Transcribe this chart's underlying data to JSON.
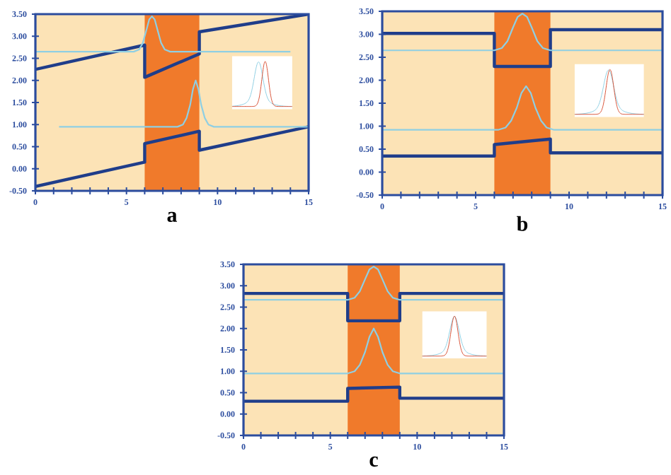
{
  "chart_data": [
    {
      "type": "line",
      "xlabel": "a",
      "xlim": [
        0,
        15
      ],
      "ylim": [
        -0.5,
        3.5
      ],
      "xticks": [
        0,
        {
          "value": 1,
          "label": null
        },
        {
          "value": 2,
          "label": null
        },
        {
          "value": 3,
          "label": null
        },
        {
          "value": 4,
          "label": null
        },
        5,
        {
          "value": 6,
          "label": null
        },
        {
          "value": 7,
          "label": null
        },
        {
          "value": 8,
          "label": null
        },
        {
          "value": 9,
          "label": null
        },
        10,
        {
          "value": 11,
          "label": null
        },
        {
          "value": 12,
          "label": null
        },
        {
          "value": 13,
          "label": null
        },
        {
          "value": 14,
          "label": null
        },
        15
      ],
      "yticks": [
        {
          "value": -0.5,
          "label": "-0.50"
        },
        {
          "value": 0,
          "label": "0.00"
        },
        {
          "value": 0.5,
          "label": "0.50"
        },
        {
          "value": 1,
          "label": "1.00"
        },
        {
          "value": 1.5,
          "label": "1.50"
        },
        {
          "value": 2,
          "label": "2.00"
        },
        {
          "value": 2.5,
          "label": "2.50"
        },
        {
          "value": 3,
          "label": "3.00"
        },
        {
          "value": 3.5,
          "label": "3.50"
        }
      ],
      "bands": [
        {
          "axis": "x",
          "from": 6,
          "to": 9,
          "color": "#f07a2b"
        }
      ],
      "series": [
        {
          "color": "#1f3d8a",
          "x": [
            0,
            6,
            6,
            9,
            9,
            15
          ],
          "values": [
            -0.4,
            0.15,
            0.57,
            0.85,
            0.42,
            0.95
          ]
        },
        {
          "color": "#1f3d8a",
          "x": [
            0,
            6,
            6,
            9,
            9,
            15
          ],
          "values": [
            2.25,
            2.8,
            2.07,
            2.6,
            3.1,
            3.5
          ]
        },
        {
          "color": "#8fcfe3",
          "x": [
            1.3,
            7.8,
            8.1,
            8.3,
            8.5,
            8.65,
            8.8,
            8.95,
            9.1,
            9.3,
            9.5,
            9.8,
            15
          ],
          "values": [
            0.95,
            0.95,
            1.0,
            1.15,
            1.45,
            1.8,
            2.0,
            1.8,
            1.45,
            1.15,
            1.0,
            0.95,
            0.95
          ]
        },
        {
          "color": "#8fcfe3",
          "x": [
            0,
            5.4,
            5.7,
            5.9,
            6.1,
            6.25,
            6.4,
            6.55,
            6.7,
            6.9,
            7.1,
            7.4,
            14
          ],
          "values": [
            2.65,
            2.65,
            2.7,
            2.85,
            3.15,
            3.38,
            3.45,
            3.38,
            3.15,
            2.85,
            2.7,
            2.65,
            2.65
          ]
        }
      ]
    },
    {
      "type": "line",
      "xlabel": "b",
      "xlim": [
        0,
        15
      ],
      "ylim": [
        -0.5,
        3.5
      ],
      "xticks": [
        0,
        {
          "value": 1,
          "label": null
        },
        {
          "value": 2,
          "label": null
        },
        {
          "value": 3,
          "label": null
        },
        {
          "value": 4,
          "label": null
        },
        5,
        {
          "value": 6,
          "label": null
        },
        {
          "value": 7,
          "label": null
        },
        {
          "value": 8,
          "label": null
        },
        {
          "value": 9,
          "label": null
        },
        10,
        {
          "value": 11,
          "label": null
        },
        {
          "value": 12,
          "label": null
        },
        {
          "value": 13,
          "label": null
        },
        {
          "value": 14,
          "label": null
        },
        15
      ],
      "yticks": [
        {
          "value": -0.5,
          "label": "-0.50"
        },
        {
          "value": 0,
          "label": "0.00"
        },
        {
          "value": 0.5,
          "label": "0.50"
        },
        {
          "value": 1,
          "label": "1.00"
        },
        {
          "value": 1.5,
          "label": "1.50"
        },
        {
          "value": 2,
          "label": "2.00"
        },
        {
          "value": 2.5,
          "label": "2.50"
        },
        {
          "value": 3,
          "label": "3.00"
        },
        {
          "value": 3.5,
          "label": "3.50"
        }
      ],
      "bands": [
        {
          "axis": "x",
          "from": 6,
          "to": 9,
          "color": "#f07a2b"
        }
      ],
      "series": [
        {
          "color": "#1f3d8a",
          "x": [
            0,
            6,
            6,
            9,
            9,
            15
          ],
          "values": [
            0.35,
            0.35,
            0.6,
            0.72,
            0.42,
            0.42
          ]
        },
        {
          "color": "#1f3d8a",
          "x": [
            0,
            6,
            6,
            9,
            9,
            15
          ],
          "values": [
            3.02,
            3.02,
            2.3,
            2.3,
            3.1,
            3.1
          ]
        },
        {
          "color": "#8fcfe3",
          "x": [
            0,
            6.2,
            6.6,
            6.9,
            7.2,
            7.45,
            7.7,
            7.95,
            8.2,
            8.5,
            8.8,
            9.2,
            15
          ],
          "values": [
            0.92,
            0.92,
            0.97,
            1.12,
            1.4,
            1.72,
            1.87,
            1.72,
            1.4,
            1.12,
            0.97,
            0.92,
            0.92
          ]
        },
        {
          "color": "#8fcfe3",
          "x": [
            0,
            6.0,
            6.4,
            6.7,
            7.0,
            7.25,
            7.5,
            7.75,
            8.0,
            8.3,
            8.6,
            9.0,
            15
          ],
          "values": [
            2.65,
            2.65,
            2.7,
            2.85,
            3.15,
            3.38,
            3.45,
            3.38,
            3.15,
            2.85,
            2.7,
            2.65,
            2.65
          ]
        }
      ]
    },
    {
      "type": "line",
      "xlabel": "c",
      "xlim": [
        0,
        15
      ],
      "ylim": [
        -0.5,
        3.5
      ],
      "xticks": [
        0,
        {
          "value": 1,
          "label": null
        },
        {
          "value": 2,
          "label": null
        },
        {
          "value": 3,
          "label": null
        },
        {
          "value": 4,
          "label": null
        },
        5,
        {
          "value": 6,
          "label": null
        },
        {
          "value": 7,
          "label": null
        },
        {
          "value": 8,
          "label": null
        },
        {
          "value": 9,
          "label": null
        },
        10,
        {
          "value": 11,
          "label": null
        },
        {
          "value": 12,
          "label": null
        },
        {
          "value": 13,
          "label": null
        },
        {
          "value": 14,
          "label": null
        },
        15
      ],
      "yticks": [
        {
          "value": -0.5,
          "label": "-0.50"
        },
        {
          "value": 0,
          "label": "0.00"
        },
        {
          "value": 0.5,
          "label": "0.50"
        },
        {
          "value": 1,
          "label": "1.00"
        },
        {
          "value": 1.5,
          "label": "1.50"
        },
        {
          "value": 2,
          "label": "2.00"
        },
        {
          "value": 2.5,
          "label": "2.50"
        },
        {
          "value": 3,
          "label": "3.00"
        },
        {
          "value": 3.5,
          "label": "3.50"
        }
      ],
      "bands": [
        {
          "axis": "x",
          "from": 6,
          "to": 9,
          "color": "#f07a2b"
        }
      ],
      "series": [
        {
          "color": "#1f3d8a",
          "x": [
            0,
            6,
            6,
            9,
            9,
            15
          ],
          "values": [
            0.3,
            0.3,
            0.6,
            0.63,
            0.37,
            0.37
          ]
        },
        {
          "color": "#1f3d8a",
          "x": [
            0,
            6,
            6,
            9,
            9,
            15
          ],
          "values": [
            2.82,
            2.82,
            2.18,
            2.18,
            2.82,
            2.82
          ]
        },
        {
          "color": "#8fcfe3",
          "x": [
            0,
            6.0,
            6.4,
            6.7,
            7.0,
            7.25,
            7.5,
            7.75,
            8.0,
            8.3,
            8.6,
            9.0,
            15
          ],
          "values": [
            0.95,
            0.95,
            1.0,
            1.15,
            1.45,
            1.8,
            2.0,
            1.8,
            1.45,
            1.15,
            1.0,
            0.95,
            0.95
          ]
        },
        {
          "color": "#8fcfe3",
          "x": [
            0,
            6.0,
            6.4,
            6.7,
            7.0,
            7.25,
            7.5,
            7.75,
            8.0,
            8.3,
            8.6,
            9.0,
            15
          ],
          "values": [
            2.67,
            2.67,
            2.72,
            2.87,
            3.15,
            3.38,
            3.45,
            3.38,
            3.15,
            2.87,
            2.72,
            2.67,
            2.67
          ]
        }
      ]
    }
  ]
}
